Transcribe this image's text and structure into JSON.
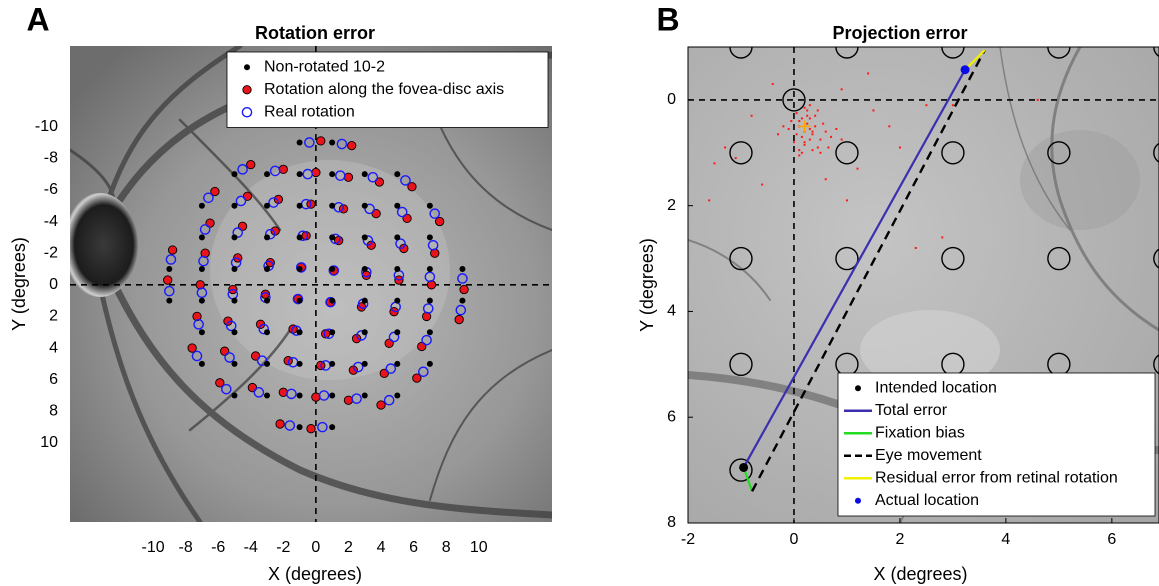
{
  "chart_data": [
    {
      "type": "scatter",
      "panel_label": "A",
      "title": "Rotation error",
      "xlabel": "X (degrees)",
      "ylabel": "Y (degrees)",
      "xlim": [
        -15.1,
        14.5
      ],
      "ylim": [
        -15.1,
        15
      ],
      "y_inverted": true,
      "xticks": [
        -10,
        -8,
        -6,
        -4,
        -2,
        0,
        2,
        4,
        6,
        8,
        10
      ],
      "yticks": [
        -10,
        -8,
        -6,
        -4,
        -2,
        0,
        2,
        4,
        6,
        8,
        10
      ],
      "axis_ticks": false,
      "frame": false,
      "legend": "upper right",
      "crosshair": {
        "x": 0,
        "y": 0
      },
      "series": [
        {
          "name": "Non-rotated 10-2",
          "color": "#000000",
          "style": "dot",
          "x": [
            -1,
            1,
            -5,
            -3,
            -1,
            1,
            3,
            5,
            -7,
            -5,
            -3,
            -1,
            1,
            3,
            5,
            7,
            -7,
            -5,
            -3,
            -1,
            1,
            3,
            5,
            7,
            -9,
            -7,
            -5,
            -3,
            -1,
            1,
            3,
            5,
            7,
            9,
            -9,
            -7,
            -5,
            -3,
            -1,
            1,
            3,
            5,
            7,
            9,
            -7,
            -5,
            -3,
            -1,
            1,
            3,
            5,
            7,
            -7,
            -5,
            -3,
            -1,
            1,
            3,
            5,
            7,
            -5,
            -3,
            -1,
            1,
            3,
            5,
            -1,
            1
          ],
          "y": [
            -9,
            -9,
            -7,
            -7,
            -7,
            -7,
            -7,
            -7,
            -5,
            -5,
            -5,
            -5,
            -5,
            -5,
            -5,
            -5,
            -3,
            -3,
            -3,
            -3,
            -3,
            -3,
            -3,
            -3,
            -1,
            -1,
            -1,
            -1,
            -1,
            -1,
            -1,
            -1,
            -1,
            -1,
            1,
            1,
            1,
            1,
            1,
            1,
            1,
            1,
            1,
            1,
            3,
            3,
            3,
            3,
            3,
            3,
            3,
            3,
            5,
            5,
            5,
            5,
            5,
            5,
            5,
            5,
            7,
            7,
            7,
            7,
            7,
            7,
            9,
            9
          ]
        },
        {
          "name": "Rotation along the fovea-disc axis",
          "color": "#e8141a",
          "style": "dot-edged",
          "x": [
            0.3,
            2.2,
            -4.0,
            -2.0,
            0,
            2.0,
            3.9,
            5.9,
            -6.2,
            -4.2,
            -2.3,
            -0.3,
            1.7,
            3.7,
            5.6,
            7.6,
            -6.5,
            -4.5,
            -2.5,
            -0.6,
            1.4,
            3.4,
            5.4,
            7.3,
            -8.8,
            -6.8,
            -4.8,
            -2.8,
            -0.9,
            1.1,
            3.1,
            5.1,
            7.1,
            9.1,
            -9.1,
            -7.1,
            -5.1,
            -3.1,
            -1.1,
            0.9,
            2.8,
            4.8,
            6.8,
            8.8,
            -7.3,
            -5.4,
            -3.4,
            -1.4,
            0.6,
            2.5,
            4.5,
            6.5,
            -7.6,
            -5.6,
            -3.7,
            -1.7,
            0.3,
            2.3,
            4.2,
            6.2,
            -5.9,
            -3.9,
            -2.0,
            0,
            2.0,
            4.0,
            -2.2,
            -0.3
          ],
          "y": [
            -9.1,
            -8.8,
            -7.6,
            -7.3,
            -7.1,
            -6.8,
            -6.5,
            -6.2,
            -5.9,
            -5.6,
            -5.4,
            -5.1,
            -4.8,
            -4.5,
            -4.2,
            -4.0,
            -3.9,
            -3.7,
            -3.4,
            -3.1,
            -2.8,
            -2.5,
            -2.3,
            -2.0,
            -2.2,
            -2.0,
            -1.7,
            -1.4,
            -1.1,
            -0.9,
            -0.6,
            -0.3,
            0,
            0.3,
            -0.3,
            0,
            0.3,
            0.6,
            0.9,
            1.1,
            1.4,
            1.7,
            2.0,
            2.2,
            2.0,
            2.3,
            2.5,
            2.8,
            3.1,
            3.4,
            3.7,
            3.9,
            4.0,
            4.2,
            4.5,
            4.8,
            5.1,
            5.4,
            5.6,
            5.9,
            6.2,
            6.5,
            6.8,
            7.1,
            7.3,
            7.6,
            8.8,
            9.1
          ]
        },
        {
          "name": "Real rotation",
          "color": "#1a1aff",
          "style": "ring",
          "x": [
            -0.4,
            1.6,
            -4.5,
            -2.5,
            -0.5,
            1.5,
            3.5,
            5.5,
            -6.6,
            -4.6,
            -2.6,
            -0.6,
            1.4,
            3.3,
            5.3,
            7.3,
            -6.8,
            -4.8,
            -2.8,
            -0.8,
            1.2,
            3.2,
            5.2,
            7.2,
            -8.9,
            -6.9,
            -4.9,
            -2.9,
            -0.9,
            1.1,
            3.1,
            5.1,
            7.0,
            9.0,
            -9.0,
            -7.0,
            -5.1,
            -3.1,
            -1.1,
            0.9,
            2.9,
            4.9,
            6.9,
            8.9,
            -7.2,
            -5.2,
            -3.2,
            -1.2,
            0.8,
            2.8,
            4.8,
            6.8,
            -7.3,
            -5.3,
            -3.3,
            -1.4,
            0.6,
            2.6,
            4.6,
            6.6,
            -5.5,
            -3.5,
            -1.5,
            0.5,
            2.5,
            4.5,
            -1.6,
            0.4
          ],
          "y": [
            -9.0,
            -8.9,
            -7.3,
            -7.2,
            -7.0,
            -6.9,
            -6.8,
            -6.6,
            -5.5,
            -5.3,
            -5.2,
            -5.1,
            -4.9,
            -4.8,
            -4.6,
            -4.5,
            -3.5,
            -3.3,
            -3.2,
            -3.1,
            -2.9,
            -2.8,
            -2.6,
            -2.5,
            -1.6,
            -1.5,
            -1.4,
            -1.2,
            -1.1,
            -0.9,
            -0.8,
            -0.6,
            -0.5,
            -0.4,
            0.4,
            0.5,
            0.6,
            0.8,
            0.9,
            1.1,
            1.2,
            1.4,
            1.5,
            1.6,
            2.5,
            2.6,
            2.8,
            2.9,
            3.1,
            3.2,
            3.3,
            3.5,
            4.5,
            4.6,
            4.8,
            4.9,
            5.1,
            5.2,
            5.3,
            5.5,
            6.6,
            6.8,
            6.9,
            7.0,
            7.2,
            7.3,
            8.9,
            9.0
          ]
        }
      ]
    },
    {
      "type": "scatter",
      "panel_label": "B",
      "title": "Projection error",
      "xlabel": "X (degrees)",
      "ylabel": "Y (degrees)",
      "xlim": [
        -2,
        6.89
      ],
      "ylim": [
        -1,
        8
      ],
      "y_inverted": true,
      "xticks": [
        -2,
        0,
        2,
        4,
        6
      ],
      "yticks": [
        0,
        2,
        4,
        6,
        8
      ],
      "axis_ticks": true,
      "frame": true,
      "legend": "lower right",
      "crosshair": {
        "x": 0,
        "y": 0
      },
      "stimulus_locations": {
        "color": "#000000",
        "x": [
          0,
          -1,
          1,
          3,
          5,
          7,
          -1,
          1,
          3,
          5,
          7,
          -1,
          1,
          3,
          5,
          7,
          -1,
          1,
          3,
          5,
          7,
          -1
        ],
        "y": [
          0,
          -1,
          -1,
          -1,
          -1,
          -1,
          1,
          1,
          1,
          1,
          1,
          3,
          3,
          3,
          3,
          3,
          5,
          5,
          5,
          5,
          5,
          7
        ]
      },
      "fixations": {
        "color": "#ff1a1a",
        "x": [
          0.1,
          0.2,
          0.3,
          0.15,
          0.25,
          0.05,
          0.35,
          0.4,
          -0.1,
          0.5,
          0.2,
          0.3,
          0.1,
          0.6,
          0.0,
          0.45,
          0.25,
          0.15,
          0.7,
          -0.2,
          0.35,
          0.55,
          0.05,
          0.3,
          0.2,
          0.4,
          0.8,
          -0.3,
          0.1,
          0.25,
          0.65,
          0.15,
          0.5,
          -0.05,
          0.3,
          0.2,
          0.9,
          0.45,
          0.1,
          0.35,
          -0.8,
          -1.3,
          -1.6,
          -0.6,
          1.2,
          1.5,
          2.3,
          2.5,
          -1.1,
          0.9,
          1.8,
          3.0,
          4.6,
          -0.4,
          1.0,
          2.8,
          -1.5,
          0.6,
          1.4,
          2.0
        ],
        "y": [
          0.5,
          0.6,
          0.55,
          0.7,
          0.45,
          0.65,
          0.6,
          0.5,
          0.55,
          0.75,
          0.85,
          0.35,
          0.4,
          0.6,
          0.8,
          0.9,
          0.3,
          1.0,
          0.7,
          0.5,
          0.95,
          0.45,
          0.25,
          0.75,
          0.15,
          0.3,
          0.55,
          0.65,
          1.05,
          0.2,
          0.9,
          0.35,
          1.0,
          0.4,
          0.1,
          0.8,
          0.75,
          0.2,
          0.95,
          0.65,
          0.3,
          0.9,
          1.9,
          1.6,
          1.3,
          0.2,
          2.8,
          0.1,
          1.1,
          -0.2,
          0.5,
          0.1,
          0.0,
          -0.3,
          1.9,
          2.6,
          1.2,
          1.5,
          -0.5,
          0.9
        ]
      },
      "fixation_mean": {
        "x": 0.2,
        "y": 0.5,
        "color": "#ffa500"
      },
      "series": [
        {
          "name": "Intended location",
          "color": "#000000",
          "style": "dot",
          "x": [
            -0.95
          ],
          "y": [
            6.95
          ]
        },
        {
          "name": "Total error",
          "color": "#3b2fb0",
          "style": "line",
          "x": [
            -0.95,
            3.23
          ],
          "y": [
            6.95,
            -0.57
          ]
        },
        {
          "name": "Fixation bias",
          "color": "#22dd22",
          "style": "line",
          "x": [
            -0.95,
            -0.79
          ],
          "y": [
            6.95,
            7.4
          ]
        },
        {
          "name": "Eye movement",
          "color": "#000000",
          "style": "dashed",
          "x": [
            -0.79,
            3.6
          ],
          "y": [
            7.4,
            -0.94
          ]
        },
        {
          "name": "Residual error from retinal rotation",
          "color": "#f2f200",
          "style": "line",
          "x": [
            3.23,
            3.6
          ],
          "y": [
            -0.57,
            -0.94
          ]
        },
        {
          "name": "Actual location",
          "color": "#0a0ae6",
          "style": "dot",
          "x": [
            3.23
          ],
          "y": [
            -0.57
          ]
        }
      ]
    }
  ]
}
